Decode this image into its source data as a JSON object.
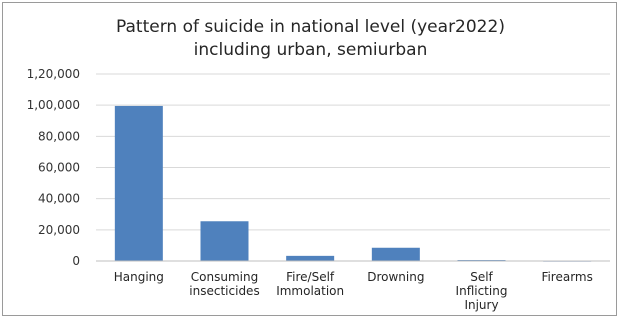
{
  "chart_data": {
    "type": "bar",
    "title_lines": [
      "Pattern of suicide in national level (year2022)",
      "including urban, semiurban"
    ],
    "categories": [
      [
        "Hanging"
      ],
      [
        "Consuming",
        "insecticides"
      ],
      [
        "Fire/Self",
        "Immolation"
      ],
      [
        "Drowning"
      ],
      [
        "Self",
        "Inflicting",
        "Injury"
      ],
      [
        "Firearms"
      ]
    ],
    "values": [
      99500,
      25500,
      3300,
      8500,
      600,
      100
    ],
    "y_ticks": [
      "0",
      "20,000",
      "40,000",
      "60,000",
      "80,000",
      "1,00,000",
      "1,20,000"
    ],
    "ylim": [
      0,
      120000
    ],
    "grid": true,
    "bar_color": "#4f81bd",
    "grid_color": "#d9d9d9",
    "axis_color": "#bfbfbf"
  }
}
